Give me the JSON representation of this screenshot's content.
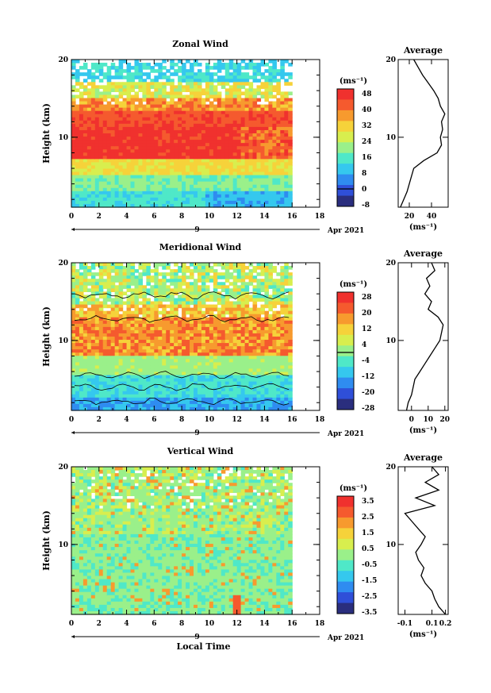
{
  "colors": {
    "scale": [
      "#2a2e7e",
      "#2f4fd8",
      "#2f8cf0",
      "#35c8ee",
      "#4fe8c8",
      "#9af08a",
      "#d8ee4e",
      "#f6d23a",
      "#f79a2e",
      "#f55a2e",
      "#f0312e"
    ]
  },
  "chart_data": [
    {
      "type": "heatmap",
      "title": "Zonal Wind",
      "xlabel": "",
      "ylabel": "Height (km)",
      "xlim": [
        0,
        18
      ],
      "ylim": [
        1,
        20
      ],
      "x_ticks": [
        "0",
        "2",
        "4",
        "6",
        "8",
        "10",
        "12",
        "14",
        "16",
        "18"
      ],
      "y_ticks": [
        "10",
        "20"
      ],
      "day_label": "9",
      "date_label": "Apr 2021",
      "colorbar": {
        "unit": "(ms⁻¹)",
        "labels": [
          "48",
          "40",
          "32",
          "24",
          "16",
          "8",
          "0",
          "-8"
        ],
        "contour_level": "0"
      },
      "profile": {
        "title": "Average",
        "xlabel": "(ms⁻¹)",
        "x_ticks": [
          "20",
          "40"
        ],
        "y_ticks": [
          "10",
          "20"
        ],
        "xlim": [
          10,
          55
        ],
        "height": [
          1,
          2,
          3,
          4,
          5,
          6,
          7,
          8,
          9,
          10,
          11,
          12,
          13,
          14,
          15,
          16,
          17,
          18,
          19,
          20
        ],
        "value": [
          12,
          15,
          18,
          20,
          22,
          24,
          33,
          45,
          49,
          48,
          50,
          49,
          52,
          48,
          46,
          42,
          37,
          32,
          28,
          24
        ]
      }
    },
    {
      "type": "heatmap",
      "title": "Meridional Wind",
      "xlabel": "",
      "ylabel": "Height (km)",
      "xlim": [
        0,
        18
      ],
      "ylim": [
        1,
        20
      ],
      "x_ticks": [
        "0",
        "2",
        "4",
        "6",
        "8",
        "10",
        "12",
        "14",
        "16",
        "18"
      ],
      "y_ticks": [
        "10",
        "20"
      ],
      "day_label": "9",
      "date_label": "Apr 2021",
      "colorbar": {
        "unit": "(ms⁻¹)",
        "labels": [
          "28",
          "20",
          "12",
          "4",
          "-4",
          "-12",
          "-20",
          "-28"
        ],
        "contour_level": "0"
      },
      "profile": {
        "title": "Average",
        "xlabel": "(ms⁻¹)",
        "x_ticks": [
          "0",
          "10",
          "20"
        ],
        "y_ticks": [
          "10",
          "20"
        ],
        "xlim": [
          -8,
          22
        ],
        "height": [
          1,
          2,
          3,
          4,
          5,
          6,
          7,
          8,
          9,
          10,
          11,
          12,
          13,
          14,
          15,
          16,
          17,
          18,
          19,
          20
        ],
        "value": [
          -3,
          -2,
          0,
          1,
          2,
          5,
          8,
          11,
          14,
          17,
          18,
          19,
          16,
          10,
          12,
          8,
          11,
          9,
          14,
          12
        ]
      }
    },
    {
      "type": "heatmap",
      "title": "Vertical Wind",
      "xlabel": "Local Time",
      "ylabel": "Height (km)",
      "xlim": [
        0,
        18
      ],
      "ylim": [
        1,
        20
      ],
      "x_ticks": [
        "0",
        "2",
        "4",
        "6",
        "8",
        "10",
        "12",
        "14",
        "16",
        "18"
      ],
      "y_ticks": [
        "10",
        "20"
      ],
      "day_label": "9",
      "date_label": "Apr 2021",
      "colorbar": {
        "unit": "(ms⁻¹)",
        "labels": [
          "3.5",
          "2.5",
          "1.5",
          "0.5",
          "-0.5",
          "-1.5",
          "-2.5",
          "-3.5"
        ]
      },
      "profile": {
        "title": "Average",
        "xlabel": "(ms⁻¹)",
        "x_ticks": [
          "-0.1",
          "0.1",
          "0.2"
        ],
        "y_ticks": [
          "10",
          "20"
        ],
        "xlim": [
          -0.15,
          0.22
        ],
        "height": [
          1,
          2,
          3,
          4,
          5,
          6,
          7,
          8,
          9,
          10,
          11,
          12,
          13,
          14,
          15,
          16,
          17,
          18,
          19,
          20
        ],
        "value": [
          0.2,
          0.15,
          0.12,
          0.1,
          0.05,
          0.02,
          0.04,
          0.0,
          -0.02,
          0.02,
          0.05,
          0.0,
          -0.05,
          -0.1,
          0.12,
          -0.02,
          0.15,
          0.05,
          0.15,
          0.1
        ]
      }
    }
  ]
}
